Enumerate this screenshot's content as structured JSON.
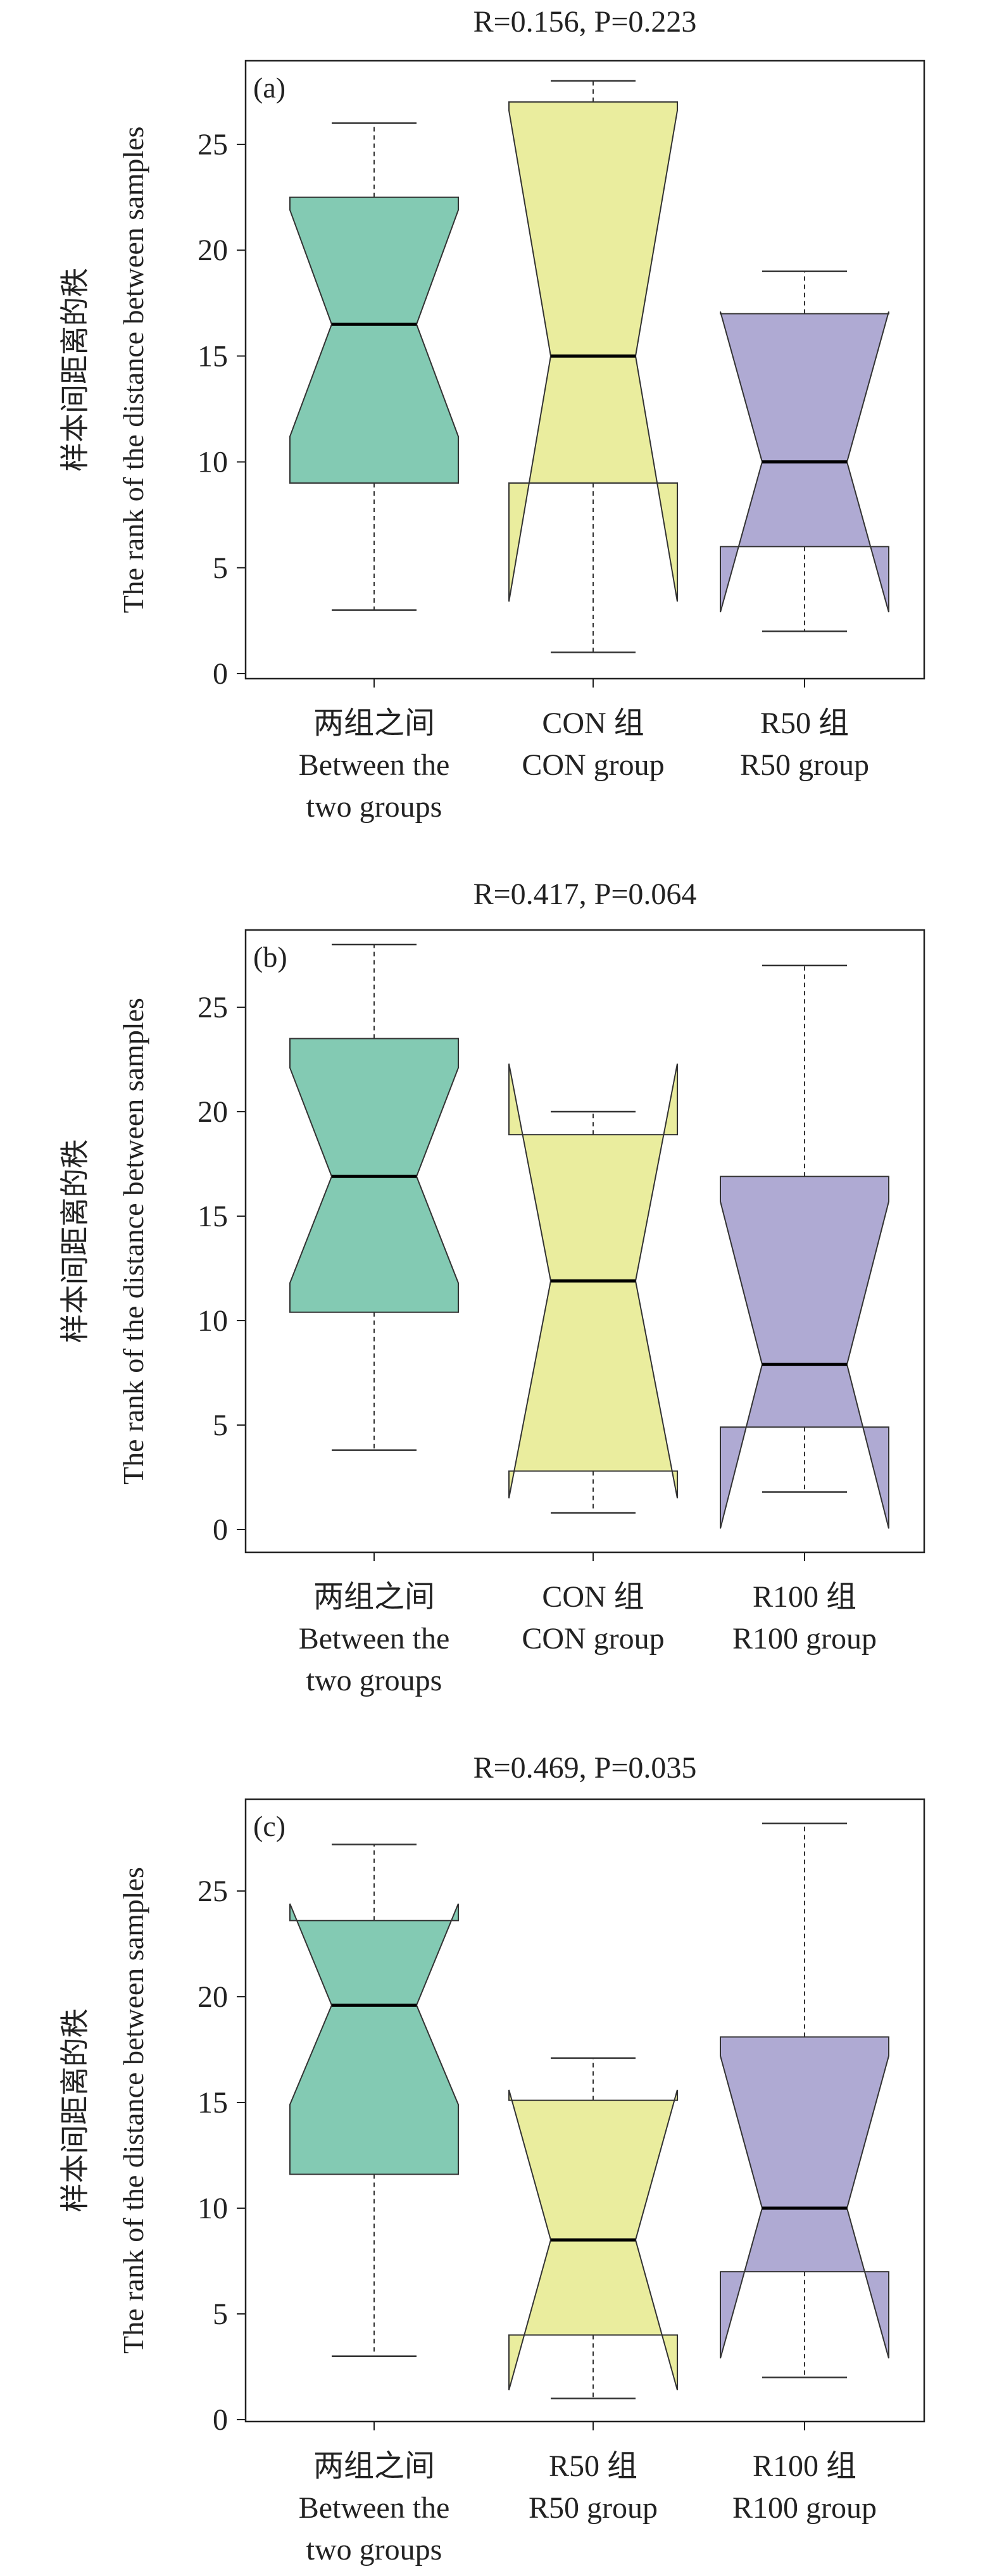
{
  "chart_data": [
    {
      "type": "boxplot",
      "panel_label": "(a)",
      "title": "R=0.156, P=0.223",
      "title_parts": {
        "r_symbol": "R",
        "r_value": "=0.156, ",
        "p_symbol": "P",
        "p_value": "=0.223"
      },
      "ylabel_cn": "样本间距离的秩",
      "ylabel_en": "The rank of the distance between samples",
      "ylim": [
        0,
        29
      ],
      "yticks": [
        "0",
        "5",
        "10",
        "15",
        "20",
        "25"
      ],
      "categories": [
        {
          "label_lines": [
            "两组之间",
            "Between the",
            "two groups"
          ],
          "color": "#83CAB3",
          "whisker_low": 3,
          "q1": 9,
          "median": 16.5,
          "q3": 22.5,
          "whisker_high": 26,
          "notch_low": 11.2,
          "notch_high": 21.9
        },
        {
          "label_lines": [
            "CON 组",
            "CON group"
          ],
          "color": "#EAED9E",
          "whisker_low": 1,
          "q1": 9,
          "median": 15,
          "q3": 27,
          "whisker_high": 28,
          "notch_low": 3.4,
          "notch_high": 26.6
        },
        {
          "label_lines": [
            "R50 组",
            "R50 group"
          ],
          "color": "#AFAAD3",
          "whisker_low": 2,
          "q1": 6,
          "median": 10,
          "q3": 17,
          "whisker_high": 19,
          "notch_low": 2.9,
          "notch_high": 17.1
        }
      ]
    },
    {
      "type": "boxplot",
      "panel_label": "(b)",
      "title": "R=0.417, P=0.064",
      "title_parts": {
        "r_symbol": "R",
        "r_value": "=0.417, ",
        "p_symbol": "P",
        "p_value": "=0.064"
      },
      "ylabel_cn": "样本间距离的秩",
      "ylabel_en": "The rank of the distance between samples",
      "ylim": [
        0,
        29
      ],
      "yticks": [
        "0",
        "5",
        "10",
        "15",
        "20",
        "25"
      ],
      "categories": [
        {
          "label_lines": [
            "两组之间",
            "Between the",
            "two groups"
          ],
          "color": "#83CAB3",
          "whisker_low": 3.8,
          "q1": 10.4,
          "median": 16.9,
          "q3": 23.5,
          "whisker_high": 28,
          "notch_low": 11.8,
          "notch_high": 22.1
        },
        {
          "label_lines": [
            "CON 组",
            "CON group"
          ],
          "color": "#EAED9E",
          "whisker_low": 0.8,
          "q1": 2.8,
          "median": 11.9,
          "q3": 18.9,
          "whisker_high": 20,
          "notch_low": 1.5,
          "notch_high": 22.3
        },
        {
          "label_lines": [
            "R100 组",
            "R100 group"
          ],
          "color": "#AFAAD3",
          "whisker_low": 1.8,
          "q1": 4.9,
          "median": 7.9,
          "q3": 16.9,
          "whisker_high": 27,
          "notch_low": 0.05,
          "notch_high": 15.7
        }
      ]
    },
    {
      "type": "boxplot",
      "panel_label": "(c)",
      "title": "R=0.469, P=0.035",
      "title_parts": {
        "r_symbol": "R",
        "r_value": "=0.469, ",
        "p_symbol": "P",
        "p_value": "=0.035"
      },
      "ylabel_cn": "样本间距离的秩",
      "ylabel_en": "The rank of the distance between samples",
      "ylim": [
        0,
        29
      ],
      "yticks": [
        "0",
        "5",
        "10",
        "15",
        "20",
        "25"
      ],
      "categories": [
        {
          "label_lines": [
            "两组之间",
            "Between the",
            "two groups"
          ],
          "color": "#83CAB3",
          "whisker_low": 3,
          "q1": 11.6,
          "median": 19.6,
          "q3": 23.6,
          "whisker_high": 27.2,
          "notch_low": 14.9,
          "notch_high": 24.4
        },
        {
          "label_lines": [
            "R50 组",
            "R50 group"
          ],
          "color": "#EAED9E",
          "whisker_low": 1,
          "q1": 4,
          "median": 8.5,
          "q3": 15.1,
          "whisker_high": 17.1,
          "notch_low": 1.4,
          "notch_high": 15.6
        },
        {
          "label_lines": [
            "R100 组",
            "R100 group"
          ],
          "color": "#AFAAD3",
          "whisker_low": 2,
          "q1": 7,
          "median": 10,
          "q3": 18.1,
          "whisker_high": 28.2,
          "notch_low": 2.9,
          "notch_high": 17.2
        }
      ]
    }
  ]
}
